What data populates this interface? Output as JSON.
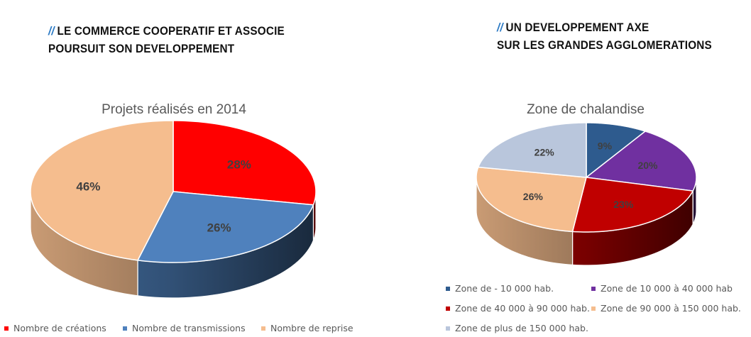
{
  "headings": {
    "left": {
      "slashes": "//",
      "line1": "LE COMMERCE COOPERATIF ET ASSOCIE",
      "line2": "POURSUIT SON DEVELOPPEMENT"
    },
    "right": {
      "slashes": "//",
      "line1": "UN DEVELOPPEMENT AXE",
      "line2": "SUR LES GRANDES AGGLOMERATIONS"
    }
  },
  "chart_data": [
    {
      "type": "pie",
      "title": "Projets réalisés en 2014",
      "categories": [
        "Nombre de créations",
        "Nombre de transmissions",
        "Nombre de reprise"
      ],
      "values": [
        28,
        26,
        46
      ],
      "labels": [
        "28%",
        "26%",
        "46%"
      ],
      "colors": [
        "#ff0000",
        "#4f81bd",
        "#f5bd8e"
      ],
      "legend_position": "bottom"
    },
    {
      "type": "pie",
      "title": "Zone de chalandise",
      "categories": [
        "Zone de - 10 000 hab.",
        "Zone de 10 000 à 40 000 hab",
        "Zone de 40 000 à 90 000 hab.",
        "Zone de 90 000 à 150 000 hab.",
        "Zone de plus de 150 000 hab."
      ],
      "values": [
        9,
        20,
        23,
        26,
        22
      ],
      "labels": [
        "9%",
        "20%",
        "23%",
        "26%",
        "22%"
      ],
      "colors": [
        "#2e5b8e",
        "#7030a0",
        "#c00000",
        "#f5bd8e",
        "#b9c6dc"
      ],
      "legend_position": "bottom"
    }
  ]
}
